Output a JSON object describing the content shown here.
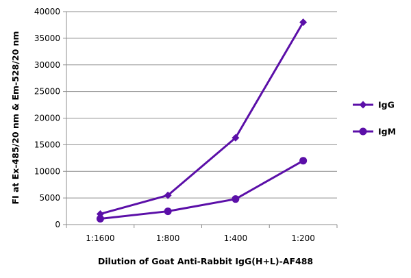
{
  "chart_data": {
    "type": "line",
    "title": "",
    "xlabel": "Dilution of Goat Anti-Rabbit IgG(H+L)-AF488",
    "ylabel": "FI at Ex-485/20 nm & Em-528/20 nm",
    "categories": [
      "1:1600",
      "1:800",
      "1:400",
      "1:200"
    ],
    "ylim": [
      0,
      40000
    ],
    "yticks": [
      0,
      5000,
      10000,
      15000,
      20000,
      25000,
      30000,
      35000,
      40000
    ],
    "grid": "horizontal",
    "legend_position": "right",
    "series": [
      {
        "name": "IgG",
        "values": [
          2000,
          5500,
          16300,
          38000
        ],
        "color": "#5b0fa8",
        "marker": "diamond"
      },
      {
        "name": "IgM",
        "values": [
          1100,
          2500,
          4800,
          12000
        ],
        "color": "#5b0fa8",
        "marker": "circle"
      }
    ]
  }
}
